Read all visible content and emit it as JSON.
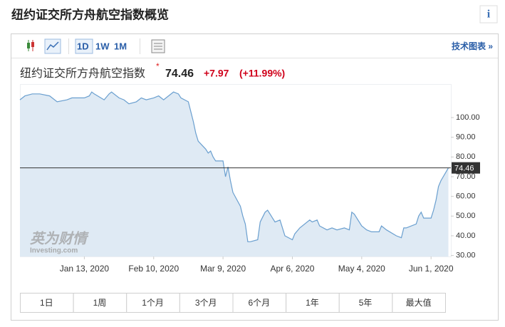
{
  "header": {
    "title": "纽约证交所方舟航空指数概览",
    "info_icon": "i"
  },
  "toolbar": {
    "intervals": [
      "1D",
      "1W",
      "1M"
    ],
    "link": "技术图表 »"
  },
  "quote": {
    "price": 74.46,
    "change": "+7.97",
    "change_percent": "(+11.99%)"
  },
  "chart_data": {
    "type": "area",
    "x": [
      "2019-12-18",
      "2019-12-20",
      "2019-12-23",
      "2019-12-26",
      "2019-12-30",
      "2020-01-02",
      "2020-01-06",
      "2020-01-08",
      "2020-01-10",
      "2020-01-13",
      "2020-01-15",
      "2020-01-16",
      "2020-01-17",
      "2020-01-21",
      "2020-01-23",
      "2020-01-24",
      "2020-01-27",
      "2020-01-29",
      "2020-01-31",
      "2020-02-03",
      "2020-02-05",
      "2020-02-07",
      "2020-02-10",
      "2020-02-12",
      "2020-02-14",
      "2020-02-18",
      "2020-02-20",
      "2020-02-21",
      "2020-02-24",
      "2020-02-25",
      "2020-02-26",
      "2020-02-27",
      "2020-02-28",
      "2020-03-02",
      "2020-03-03",
      "2020-03-04",
      "2020-03-05",
      "2020-03-06",
      "2020-03-09",
      "2020-03-10",
      "2020-03-11",
      "2020-03-12",
      "2020-03-13",
      "2020-03-16",
      "2020-03-17",
      "2020-03-18",
      "2020-03-19",
      "2020-03-20",
      "2020-03-23",
      "2020-03-24",
      "2020-03-26",
      "2020-03-27",
      "2020-03-30",
      "2020-04-01",
      "2020-04-03",
      "2020-04-06",
      "2020-04-07",
      "2020-04-09",
      "2020-04-13",
      "2020-04-14",
      "2020-04-16",
      "2020-04-17",
      "2020-04-20",
      "2020-04-22",
      "2020-04-24",
      "2020-04-27",
      "2020-04-29",
      "2020-04-30",
      "2020-05-01",
      "2020-05-04",
      "2020-05-06",
      "2020-05-08",
      "2020-05-11",
      "2020-05-12",
      "2020-05-14",
      "2020-05-18",
      "2020-05-20",
      "2020-05-21",
      "2020-05-22",
      "2020-05-26",
      "2020-05-27",
      "2020-05-28",
      "2020-05-29",
      "2020-06-01",
      "2020-06-02",
      "2020-06-03",
      "2020-06-04",
      "2020-06-05",
      "2020-06-08"
    ],
    "series": [
      {
        "name": "纽约证交所方舟航空指数",
        "color": "#6a9fcf",
        "fill": "#dfeaf4",
        "values": [
          109,
          111,
          112,
          112,
          111,
          108,
          109,
          110,
          110,
          110,
          111,
          113,
          112,
          109,
          112,
          113,
          110,
          109,
          107,
          108,
          110,
          109,
          110,
          111,
          109,
          113,
          112,
          110,
          108,
          103,
          98,
          92,
          88,
          84,
          82,
          83,
          80,
          78,
          78,
          70,
          75,
          68,
          62,
          55,
          50,
          46,
          37,
          37,
          38,
          47,
          52,
          53,
          47,
          48,
          40,
          38,
          41,
          44,
          48,
          47,
          48,
          45,
          43,
          44,
          43,
          44,
          43,
          52,
          51,
          45,
          43,
          42,
          42,
          45,
          43,
          40,
          39,
          44,
          44,
          46,
          50,
          52,
          49,
          49,
          53,
          58,
          65,
          68,
          74.46
        ]
      }
    ],
    "xlim": [
      "2019-12-18",
      "2020-06-09"
    ],
    "xticks": [
      {
        "value": "2020-01-13",
        "label": "Jan 13, 2020"
      },
      {
        "value": "2020-02-10",
        "label": "Feb 10, 2020"
      },
      {
        "value": "2020-03-09",
        "label": "Mar 9, 2020"
      },
      {
        "value": "2020-04-06",
        "label": "Apr 6, 2020"
      },
      {
        "value": "2020-05-04",
        "label": "May 4, 2020"
      },
      {
        "value": "2020-06-01",
        "label": "Jun 1, 2020"
      }
    ],
    "ylim": [
      29.5,
      117
    ],
    "yticks": [
      {
        "value": 30,
        "label": "30.00"
      },
      {
        "value": 40,
        "label": "40.00"
      },
      {
        "value": 50,
        "label": "50.00"
      },
      {
        "value": 60,
        "label": "60.00"
      },
      {
        "value": 70,
        "label": "70.00"
      },
      {
        "value": 80,
        "label": "80.00"
      },
      {
        "value": 90,
        "label": "90.00"
      },
      {
        "value": 100,
        "label": "100.00"
      }
    ]
  },
  "ranges": [
    "1日",
    "1周",
    "1个月",
    "3个月",
    "6个月",
    "1年",
    "5年",
    "最大值"
  ],
  "watermark": {
    "cn": "英为财情",
    "en": "Investing.com"
  }
}
